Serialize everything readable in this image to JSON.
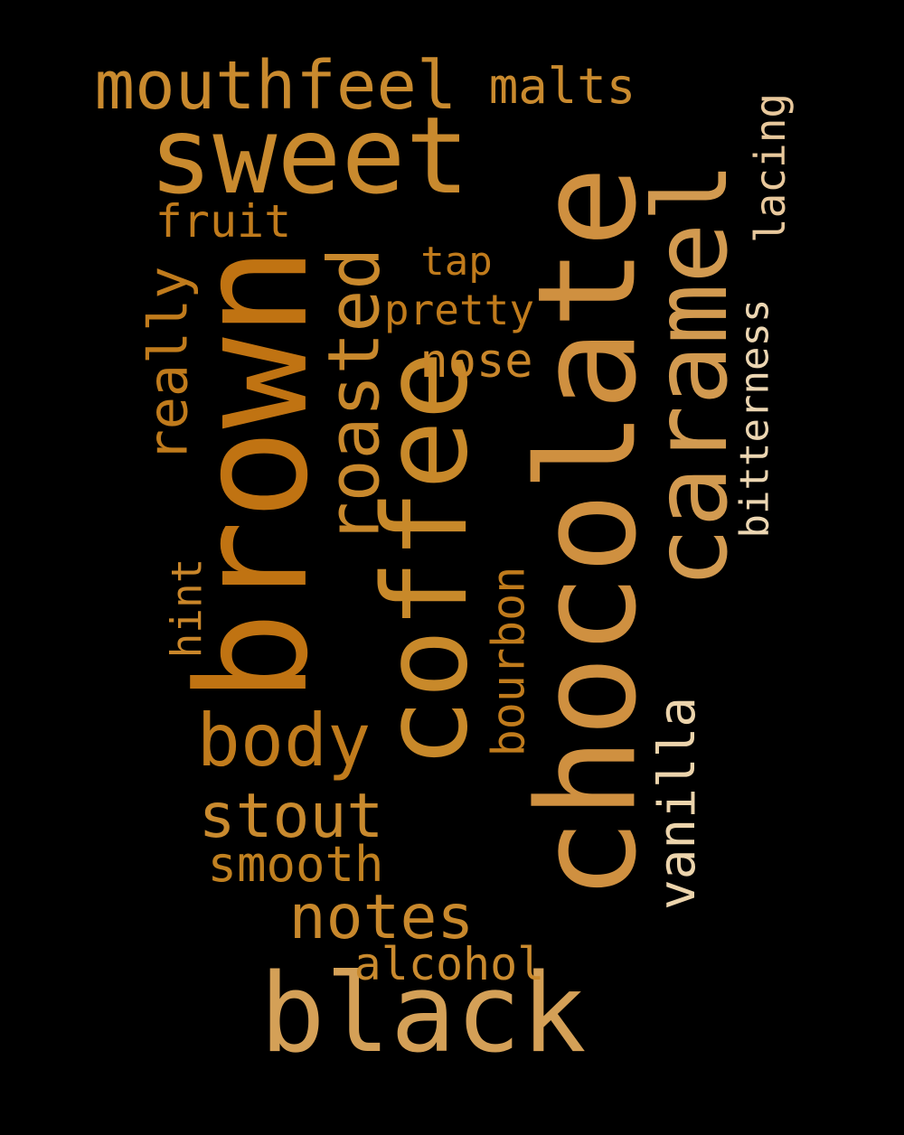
{
  "words": [
    {
      "id": "sweet",
      "text": "sweet",
      "color": "#c98a2e"
    },
    {
      "id": "chocolate",
      "text": "chocolate",
      "color": "#cf9040"
    },
    {
      "id": "brown",
      "text": "brown",
      "color": "#c07312"
    },
    {
      "id": "coffee",
      "text": "coffee",
      "color": "#c8892a"
    },
    {
      "id": "caramel",
      "text": "caramel",
      "color": "#d29a50"
    },
    {
      "id": "black",
      "text": "black",
      "color": "#d4a057"
    },
    {
      "id": "roasted",
      "text": "roasted",
      "color": "#c8882c"
    },
    {
      "id": "mouthfeel",
      "text": "mouthfeel",
      "color": "#c98a2e"
    },
    {
      "id": "malts",
      "text": "malts",
      "color": "#c98a2e"
    },
    {
      "id": "fruit",
      "text": "fruit",
      "color": "#c07b1c"
    },
    {
      "id": "tap",
      "text": "tap",
      "color": "#c07b1c"
    },
    {
      "id": "pretty",
      "text": "pretty",
      "color": "#c07b1c"
    },
    {
      "id": "nose",
      "text": "nose",
      "color": "#c9862a"
    },
    {
      "id": "really",
      "text": "really",
      "color": "#c07b1c"
    },
    {
      "id": "lacing",
      "text": "lacing",
      "color": "#e8c89c"
    },
    {
      "id": "bitterness",
      "text": "bitterness",
      "color": "#ecd6b2"
    },
    {
      "id": "body",
      "text": "body",
      "color": "#c07b1c"
    },
    {
      "id": "stout",
      "text": "stout",
      "color": "#c98a2e"
    },
    {
      "id": "smooth",
      "text": "smooth",
      "color": "#c08020"
    },
    {
      "id": "notes",
      "text": "notes",
      "color": "#c8882c"
    },
    {
      "id": "hint",
      "text": "hint",
      "color": "#c9862a"
    },
    {
      "id": "bourbon",
      "text": "bourbon",
      "color": "#c07b1c"
    },
    {
      "id": "vanilla",
      "text": "vanilla",
      "color": "#ecd4ac"
    },
    {
      "id": "alcohol",
      "text": "alcohol",
      "color": "#c98a2e"
    }
  ]
}
